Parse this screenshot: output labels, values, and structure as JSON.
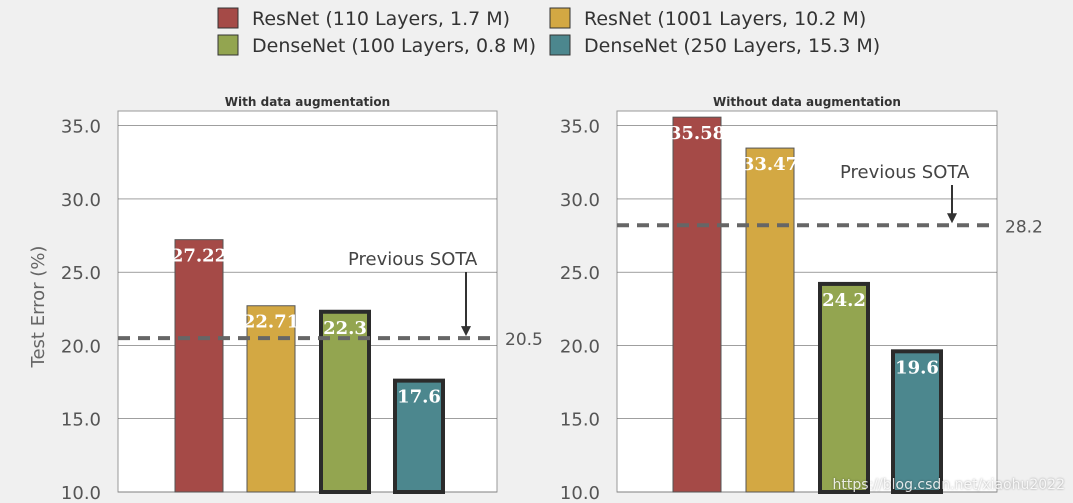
{
  "legend": [
    {
      "label": "ResNet (110 Layers, 1.7 M)",
      "color": "#a54a47"
    },
    {
      "label": "ResNet (1001 Layers, 10.2 M)",
      "color": "#d3a843"
    },
    {
      "label": "DenseNet (100 Layers, 0.8 M)",
      "color": "#93a550"
    },
    {
      "label": "DenseNet (250 Layers, 15.3 M)",
      "color": "#4c878e"
    }
  ],
  "watermark": "https://blog.csdn.net/xiaohu2022",
  "chart_data": [
    {
      "type": "bar",
      "title": "With data augmentation",
      "ylabel": "Test Error (%)",
      "ylim": [
        10,
        36
      ],
      "yticks": [
        "10.0",
        "15.0",
        "20.0",
        "25.0",
        "30.0",
        "35.0"
      ],
      "categories": [
        "ResNet (110 Layers, 1.7 M)",
        "ResNet (1001 Layers, 10.2 M)",
        "DenseNet (100 Layers, 0.8 M)",
        "DenseNet (250 Layers, 15.3 M)"
      ],
      "values": [
        27.22,
        22.71,
        22.3,
        17.6
      ],
      "value_labels": [
        "27.22",
        "22.71",
        "22.3",
        "17.6"
      ],
      "reference": {
        "value": 20.5,
        "label": "20.5",
        "annotation": "Previous SOTA"
      }
    },
    {
      "type": "bar",
      "title": "Without data augmentation",
      "ylabel": "",
      "ylim": [
        10,
        36
      ],
      "yticks": [
        "10.0",
        "15.0",
        "20.0",
        "25.0",
        "30.0",
        "35.0"
      ],
      "categories": [
        "ResNet (110 Layers, 1.7 M)",
        "ResNet (1001 Layers, 10.2 M)",
        "DenseNet (100 Layers, 0.8 M)",
        "DenseNet (250 Layers, 15.3 M)"
      ],
      "values": [
        35.58,
        33.47,
        24.2,
        19.6
      ],
      "value_labels": [
        "35.58",
        "33.47",
        "24.2",
        "19.6"
      ],
      "reference": {
        "value": 28.2,
        "label": "28.2",
        "annotation": "Previous SOTA"
      }
    }
  ]
}
